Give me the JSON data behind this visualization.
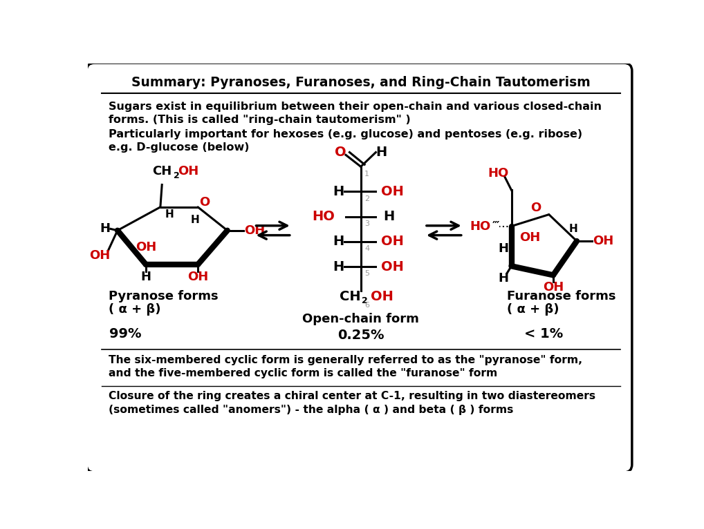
{
  "title": "Summary: Pyranoses, Furanoses, and Ring-Chain Tautomerism",
  "bg_color": "#ffffff",
  "border_color": "#000000",
  "text_color": "#000000",
  "red_color": "#cc0000",
  "gray_color": "#999999",
  "line1": "Sugars exist in equilibrium between their open-chain and various closed-chain",
  "line2": "forms. (This is called \"ring-chain tautomerism\" )",
  "line3": "Particularly important for hexoses (e.g. glucose) and pentoses (e.g. ribose)",
  "line4": "e.g. D-glucose (below)",
  "label_pyranose": "Pyranose forms",
  "label_pyranose2": "( α + β)",
  "label_openchain": "Open-chain form",
  "label_furanose": "Furanose forms",
  "label_furanose2": "( α + β)",
  "pct_pyranose": "99%",
  "pct_openchain": "0.25%",
  "pct_furanose": "< 1%",
  "footer1": "The six-membered cyclic form is generally referred to as the \"pyranose\" form,",
  "footer2": "and the five-membered cyclic form is called the \"furanose\" form",
  "footer3": "Closure of the ring creates a chiral center at C-1, resulting in two diastereomers",
  "footer4": "(sometimes called \"anomers\") - the alpha ( α ) and beta ( β ) forms"
}
